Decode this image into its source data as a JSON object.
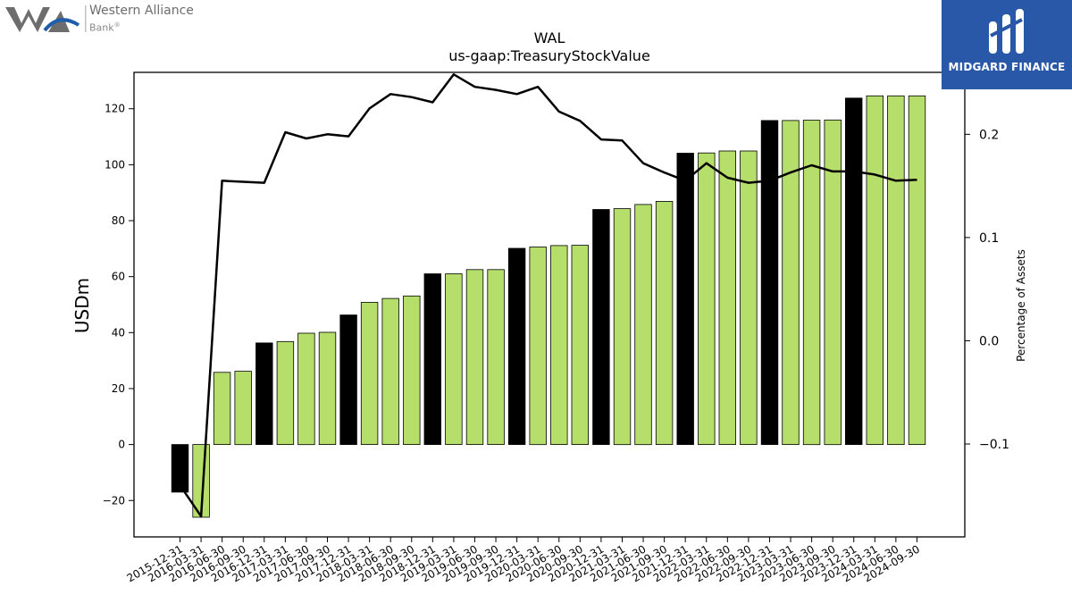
{
  "branding": {
    "company_name": "Western Alliance",
    "company_sub": "Bank",
    "company_sub_mark": "®",
    "partner_name": "MIDGARD FINANCE",
    "brand_colors": {
      "wa_gray": "#6d6d6d",
      "wa_blue": "#1f5ea8",
      "midgard_blue": "#2a58a8"
    }
  },
  "chart_data": {
    "type": "bar",
    "title": "WAL",
    "subtitle": "us-gaap:TreasuryStockValue",
    "ylabel": "USDm",
    "y2label": "Percentage of Assets",
    "ylim": [
      -33,
      133
    ],
    "y2lim": [
      -0.19,
      0.26
    ],
    "yticks": [
      -20,
      0,
      20,
      40,
      60,
      80,
      100,
      120
    ],
    "y2ticks": [
      -0.1,
      0.0,
      0.1,
      0.2
    ],
    "grid": false,
    "colors": {
      "bar": "#b5de6a",
      "bar_year_end": "#000000",
      "line": "#000000"
    },
    "categories": [
      "2015-12-31",
      "2016-03-31",
      "2016-06-30",
      "2016-09-30",
      "2016-12-31",
      "2017-03-31",
      "2017-06-30",
      "2017-09-30",
      "2017-12-31",
      "2018-03-31",
      "2018-06-30",
      "2018-09-30",
      "2018-12-31",
      "2019-03-31",
      "2019-06-30",
      "2019-09-30",
      "2019-12-31",
      "2020-03-31",
      "2020-06-30",
      "2020-09-30",
      "2020-12-31",
      "2021-03-31",
      "2021-06-30",
      "2021-09-30",
      "2021-12-31",
      "2022-03-31",
      "2022-06-30",
      "2022-09-30",
      "2022-12-31",
      "2023-03-31",
      "2023-06-30",
      "2023-09-30",
      "2023-12-31",
      "2024-03-31",
      "2024-06-30",
      "2024-09-30"
    ],
    "series": [
      {
        "type": "bar",
        "values": [
          -17,
          -26,
          25.8,
          26.2,
          36.3,
          36.8,
          39.8,
          40.1,
          46.3,
          50.8,
          52.2,
          53.1,
          61.0,
          61.0,
          62.5,
          62.5,
          70.1,
          70.6,
          71.1,
          71.2,
          84.0,
          84.3,
          85.8,
          86.9,
          104.1,
          104.2,
          104.9,
          104.9,
          115.8,
          115.8,
          115.9,
          116.0,
          123.8,
          124.6,
          124.6,
          124.6
        ]
      },
      {
        "type": "line",
        "axis": "secondary",
        "values": [
          -0.14,
          -0.17,
          0.155,
          0.154,
          0.153,
          0.202,
          0.196,
          0.2,
          0.198,
          0.225,
          0.239,
          0.236,
          0.231,
          0.258,
          0.246,
          0.243,
          0.239,
          0.246,
          0.222,
          0.213,
          0.195,
          0.194,
          0.172,
          0.163,
          0.155,
          0.172,
          0.158,
          0.153,
          0.155,
          0.163,
          0.17,
          0.164,
          0.164,
          0.161,
          0.155,
          0.156
        ]
      }
    ]
  }
}
